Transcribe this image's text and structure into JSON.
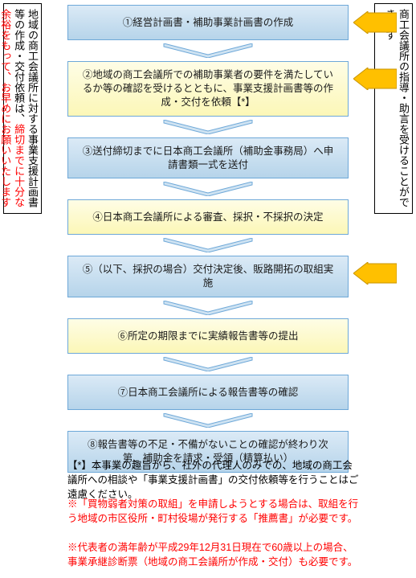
{
  "sideLeft": {
    "seg1": "地域の商工会議所に対する事業支援計画書等の作成・交付依頼は、",
    "segRed1": "締切までに十分な余裕をもって、お早めにお願いいたします"
  },
  "sideRight": {
    "text": "商工会議所の指導・助言を受けることができます"
  },
  "steps": [
    {
      "text": "①経営計画書・補助事業計画書の作成",
      "bgTop": "#dbeaf6",
      "bgBot": "#b6d4ea",
      "pointer": true
    },
    {
      "text": "②地域の商工会議所での補助事業者の要件を満たしているか等の確認を受けるとともに、事業支援計画書等の作成・交付を依頼【*】",
      "bgTop": "#fefde6",
      "bgBot": "#fcf7b7",
      "pointer": true
    },
    {
      "text": "③送付締切までに日本商工会議所（補助金事務局）へ申請書類一式を送付",
      "bgTop": "#dbeaf6",
      "bgBot": "#b6d4ea",
      "pointer": false
    },
    {
      "text": "④日本商工会議所による審査、採択・不採択の決定",
      "bgTop": "#fefde6",
      "bgBot": "#fcf7b7",
      "pointer": false
    },
    {
      "text": "⑤（以下、採択の場合）交付決定後、販路開拓の取組実施",
      "bgTop": "#dbeaf6",
      "bgBot": "#b6d4ea",
      "pointer": true
    },
    {
      "text": "⑥所定の期限までに実績報告書等の提出",
      "bgTop": "#fefde6",
      "bgBot": "#fcf7b7",
      "pointer": false
    },
    {
      "text": "⑦日本商工会議所による報告書等の確認",
      "bgTop": "#dbeaf6",
      "bgBot": "#b6d4ea",
      "pointer": false
    },
    {
      "text": "⑧報告書等の不足・不備がないことの確認が終わり次第、補助金を請求・受領（精算払い）",
      "bgTop": "#dbeaf6",
      "bgBot": "#b6d4ea",
      "pointer": false
    }
  ],
  "chevron": {
    "fill": "#cfe3f2",
    "stroke": "#6ea8d8"
  },
  "pointerColors": {
    "fill": "#ffc000",
    "stroke": "#c89400"
  },
  "footnote": "【*】本事業の趣旨から、社外の代理人のみでの、地域の商工会議所への相談や「事業支援計画書」の交付依頼等を行うことはご遠慮ください。",
  "warn1": "※「買物弱者対策の取組」を申請しようとする場合は、取組を行う地域の市区役所・町村役場が発行する「推薦書」が必要です。",
  "warn2": "※代表者の満年齢が平成29年12月31日現在で60歳以上の場合、事業承継診断票（地域の商工会議所が作成・交付）も必要です。"
}
